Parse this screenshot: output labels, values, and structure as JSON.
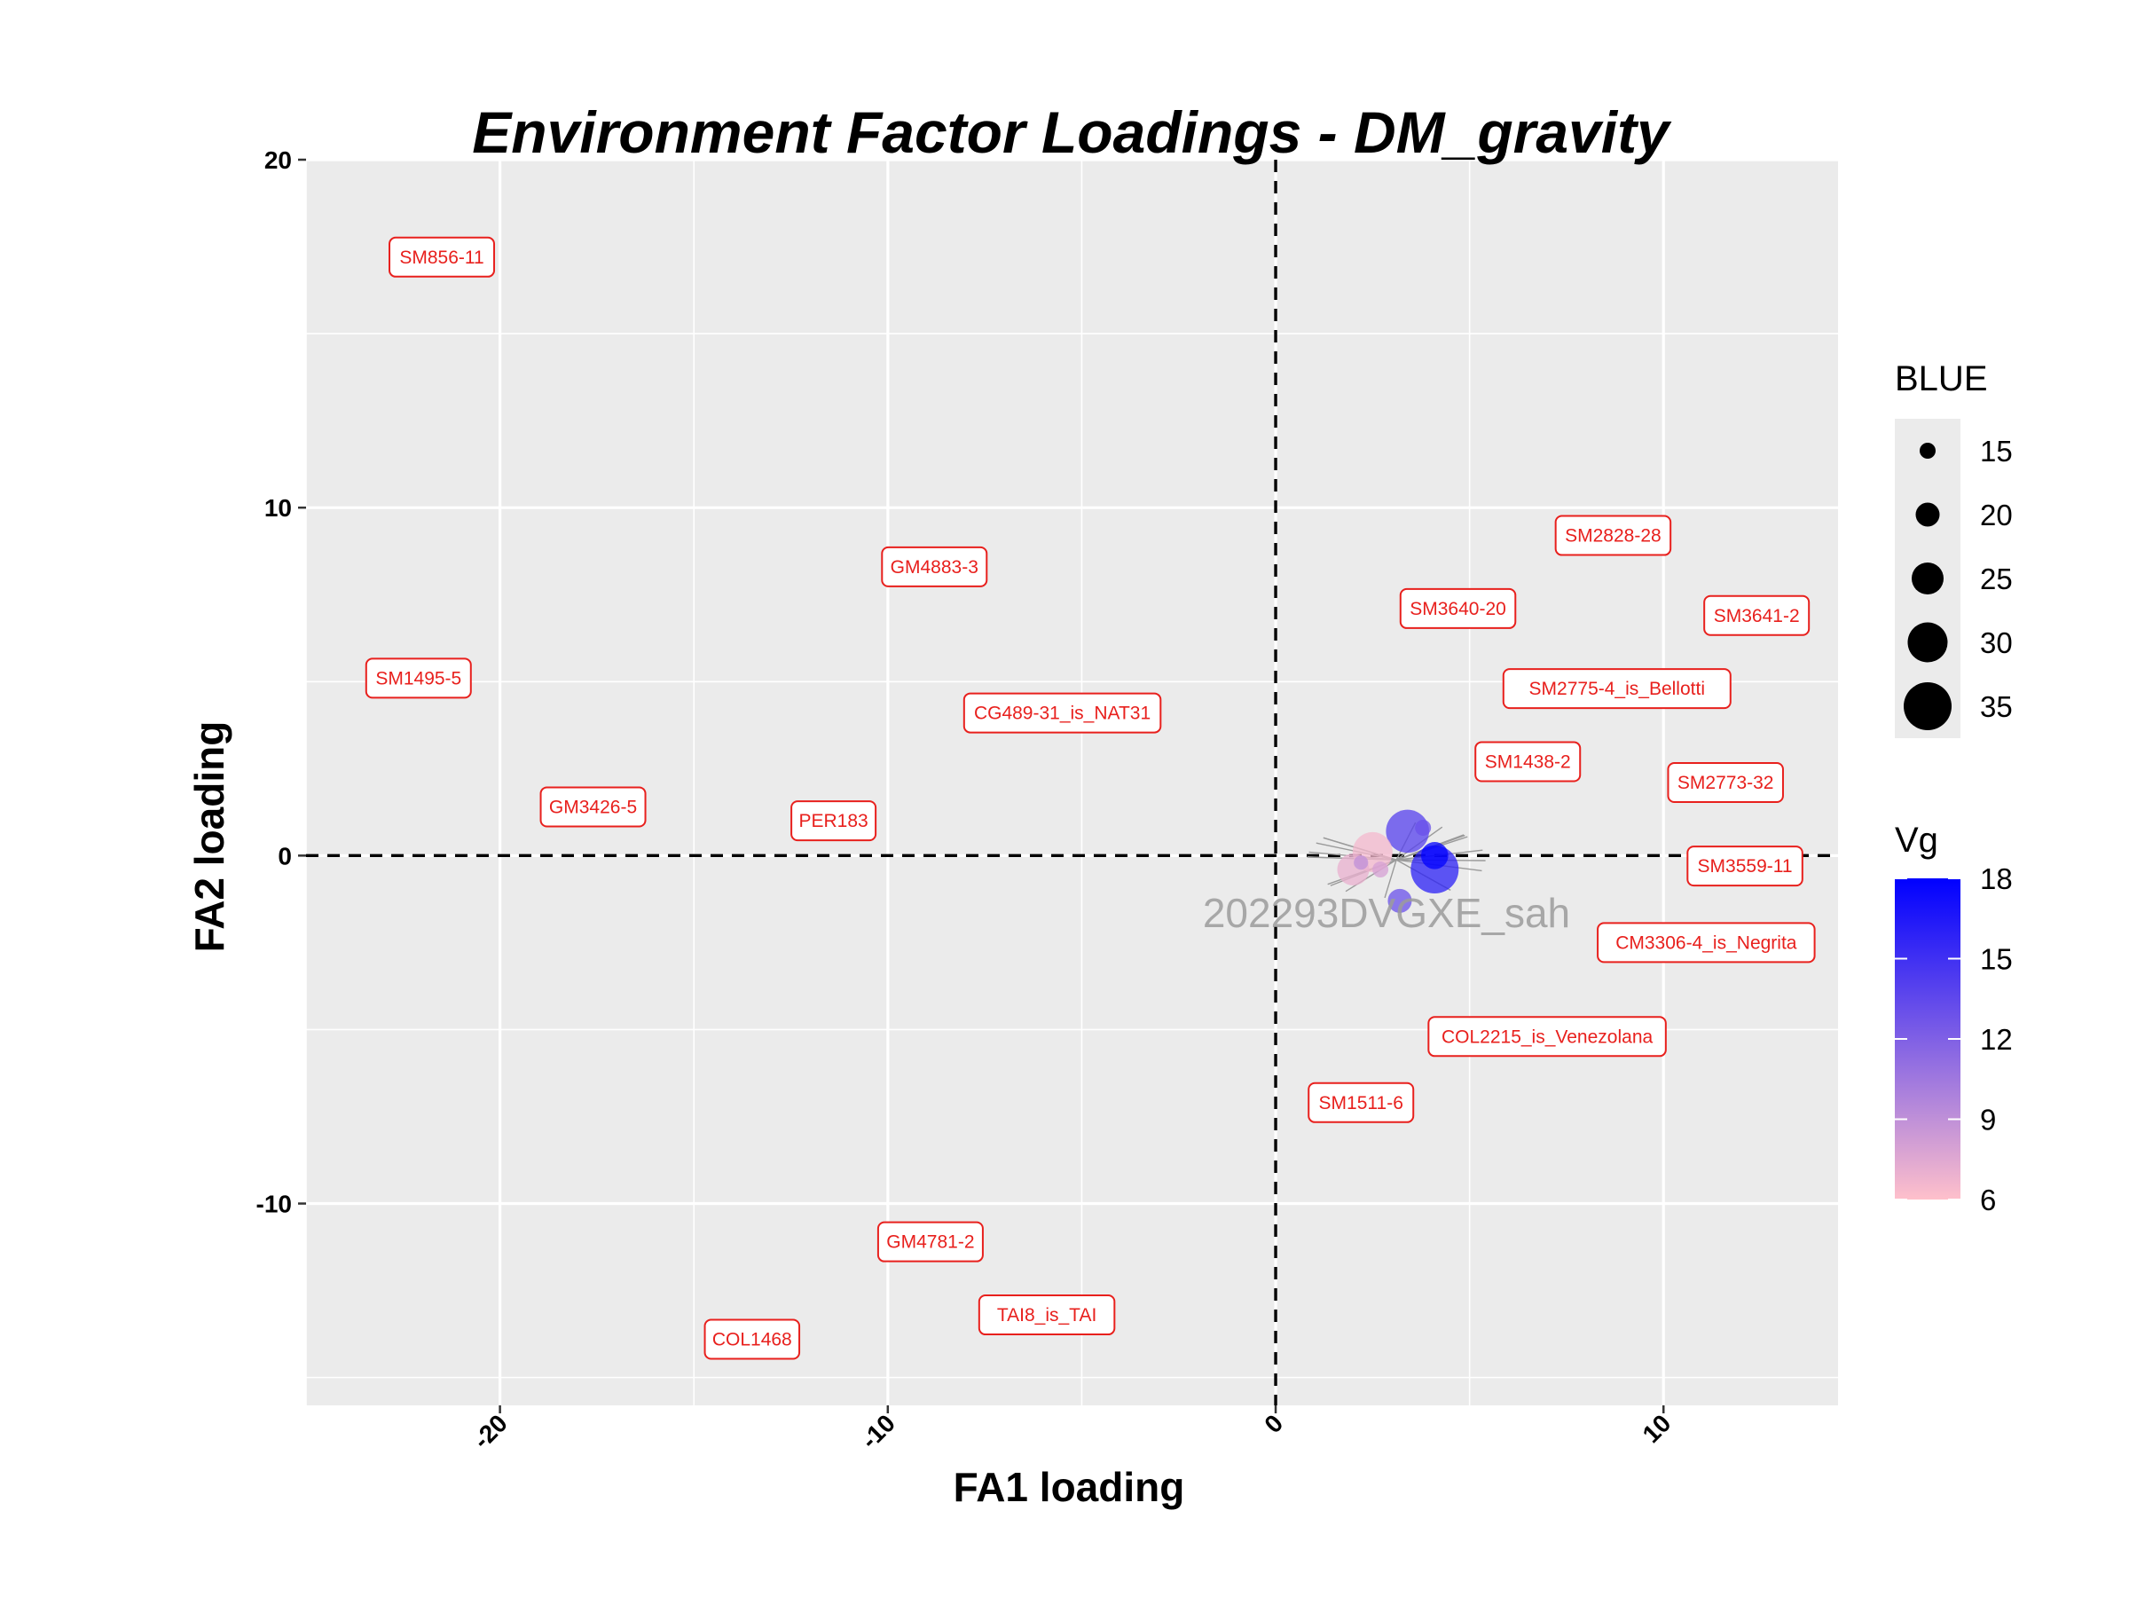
{
  "chart_data": {
    "type": "scatter",
    "title": "Environment Factor Loadings - DM_gravity",
    "xlabel": "FA1 loading",
    "ylabel": "FA2 loading",
    "xlim": [
      -25,
      14.5
    ],
    "ylim": [
      -15.8,
      20
    ],
    "x_ticks": [
      "-20",
      "-10",
      "0",
      "10"
    ],
    "x_tick_values": [
      -20,
      -10,
      0,
      10
    ],
    "y_ticks": [
      "-10",
      "0",
      "10",
      "20"
    ],
    "y_tick_values": [
      -10,
      0,
      10,
      20
    ],
    "grid": true,
    "reference_lines": {
      "x": 0,
      "y": 0,
      "style": "dashed"
    },
    "watermark": "202293DVGXE_sah",
    "labels": [
      {
        "text": "SM856-11",
        "x": -21.5,
        "y": 17.2
      },
      {
        "text": "SM1495-5",
        "x": -22.1,
        "y": 5.1
      },
      {
        "text": "GM3426-5",
        "x": -17.6,
        "y": 1.4
      },
      {
        "text": "GM4883-3",
        "x": -8.8,
        "y": 8.3
      },
      {
        "text": "CG489-31_is_NAT31",
        "x": -5.5,
        "y": 4.1
      },
      {
        "text": "PER183",
        "x": -11.4,
        "y": 1.0
      },
      {
        "text": "SM2828-28",
        "x": 8.7,
        "y": 9.2
      },
      {
        "text": "SM3640-20",
        "x": 4.7,
        "y": 7.1
      },
      {
        "text": "SM3641-2",
        "x": 12.4,
        "y": 6.9
      },
      {
        "text": "SM2775-4_is_Bellotti",
        "x": 8.8,
        "y": 4.8
      },
      {
        "text": "SM1438-2",
        "x": 6.5,
        "y": 2.7
      },
      {
        "text": "SM2773-32",
        "x": 11.6,
        "y": 2.1
      },
      {
        "text": "SM3559-11",
        "x": 12.1,
        "y": -0.3
      },
      {
        "text": "CM3306-4_is_Negrita",
        "x": 11.1,
        "y": -2.5
      },
      {
        "text": "COL2215_is_Venezolana",
        "x": 7.0,
        "y": -5.2
      },
      {
        "text": "SM1511-6",
        "x": 2.2,
        "y": -7.1
      },
      {
        "text": "GM4781-2",
        "x": -8.9,
        "y": -11.1
      },
      {
        "text": "TAI8_is_TAI",
        "x": -5.9,
        "y": -13.2
      },
      {
        "text": "COL1468",
        "x": -13.5,
        "y": -13.9
      }
    ],
    "points": [
      {
        "x": 4.1,
        "y": -0.4,
        "blue": 35,
        "vg": 16
      },
      {
        "x": 4.1,
        "y": 0.0,
        "blue": 22,
        "vg": 18
      },
      {
        "x": 3.4,
        "y": 0.7,
        "blue": 32,
        "vg": 14
      },
      {
        "x": 3.8,
        "y": 0.8,
        "blue": 15,
        "vg": 13
      },
      {
        "x": 2.5,
        "y": 0.1,
        "blue": 30,
        "vg": 6.5
      },
      {
        "x": 2.0,
        "y": -0.4,
        "blue": 25,
        "vg": 7
      },
      {
        "x": 2.7,
        "y": -0.4,
        "blue": 15,
        "vg": 8
      },
      {
        "x": 3.2,
        "y": -1.3,
        "blue": 20,
        "vg": 13
      },
      {
        "x": 2.2,
        "y": -0.2,
        "blue": 14,
        "vg": 9
      }
    ],
    "legend": {
      "size": {
        "title": "BLUE",
        "labels": [
          "15",
          "20",
          "25",
          "30",
          "35"
        ],
        "values": [
          15,
          20,
          25,
          30,
          35
        ]
      },
      "color": {
        "title": "Vg",
        "labels": [
          "18",
          "15",
          "12",
          "9",
          "6"
        ],
        "values": [
          18,
          15,
          12,
          9,
          6
        ],
        "low_color": "#ffc0cb",
        "high_color": "#0000ff"
      },
      "placement": "right"
    },
    "colors": {
      "panel": "#ebebeb",
      "grid": "#ffffff",
      "label_text": "#e8201d",
      "label_border": "#e8201d",
      "connector": "#9a9a9a"
    }
  }
}
